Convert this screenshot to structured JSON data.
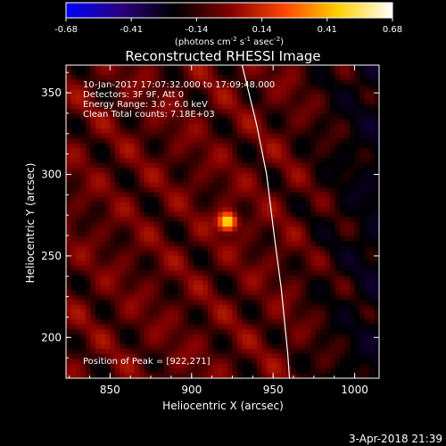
{
  "chart_data": {
    "type": "heatmap",
    "title": "Reconstructed RHESSI Image",
    "xlabel": "Heliocentric X (arcsec)",
    "ylabel": "Heliocentric Y (arcsec)",
    "xlim": [
      823,
      1015
    ],
    "ylim": [
      175,
      367
    ],
    "x_ticks": [
      850,
      900,
      950,
      1000
    ],
    "y_ticks": [
      200,
      250,
      300,
      350
    ],
    "info_lines": [
      "10-Jan-2017 17:07:32.000 to 17:09:48.000",
      "Detectors: 3F 9F, Att 0",
      "Energy Range: 3.0 - 6.0 keV",
      "Clean     Total counts: 7.18E+03"
    ],
    "peak_label": "Position of Peak = [922,271]",
    "peak": {
      "x": 922,
      "y": 271,
      "value": 0.68
    },
    "limb_curve": [
      [
        931,
        367
      ],
      [
        940,
        330
      ],
      [
        946,
        300
      ],
      [
        951,
        260
      ],
      [
        955,
        230
      ],
      [
        959,
        190
      ],
      [
        960,
        175
      ]
    ],
    "colorbar": {
      "min": -0.68,
      "max": 0.68,
      "ticks": [
        "-0.68",
        "-0.41",
        "-0.14",
        "0.14",
        "0.41",
        "0.68"
      ],
      "unit_main": "(photons cm",
      "unit_exp1": "-2",
      "unit_mid1": " s",
      "unit_exp2": "-1",
      "unit_mid2": " asec",
      "unit_exp3": "-2",
      "unit_end": ")",
      "colors": [
        "#0000ff",
        "#2a0080",
        "#000000",
        "#800000",
        "#ff4400",
        "#ffd000",
        "#ffffff"
      ]
    }
  },
  "timestamp": "3-Apr-2018 21:39"
}
